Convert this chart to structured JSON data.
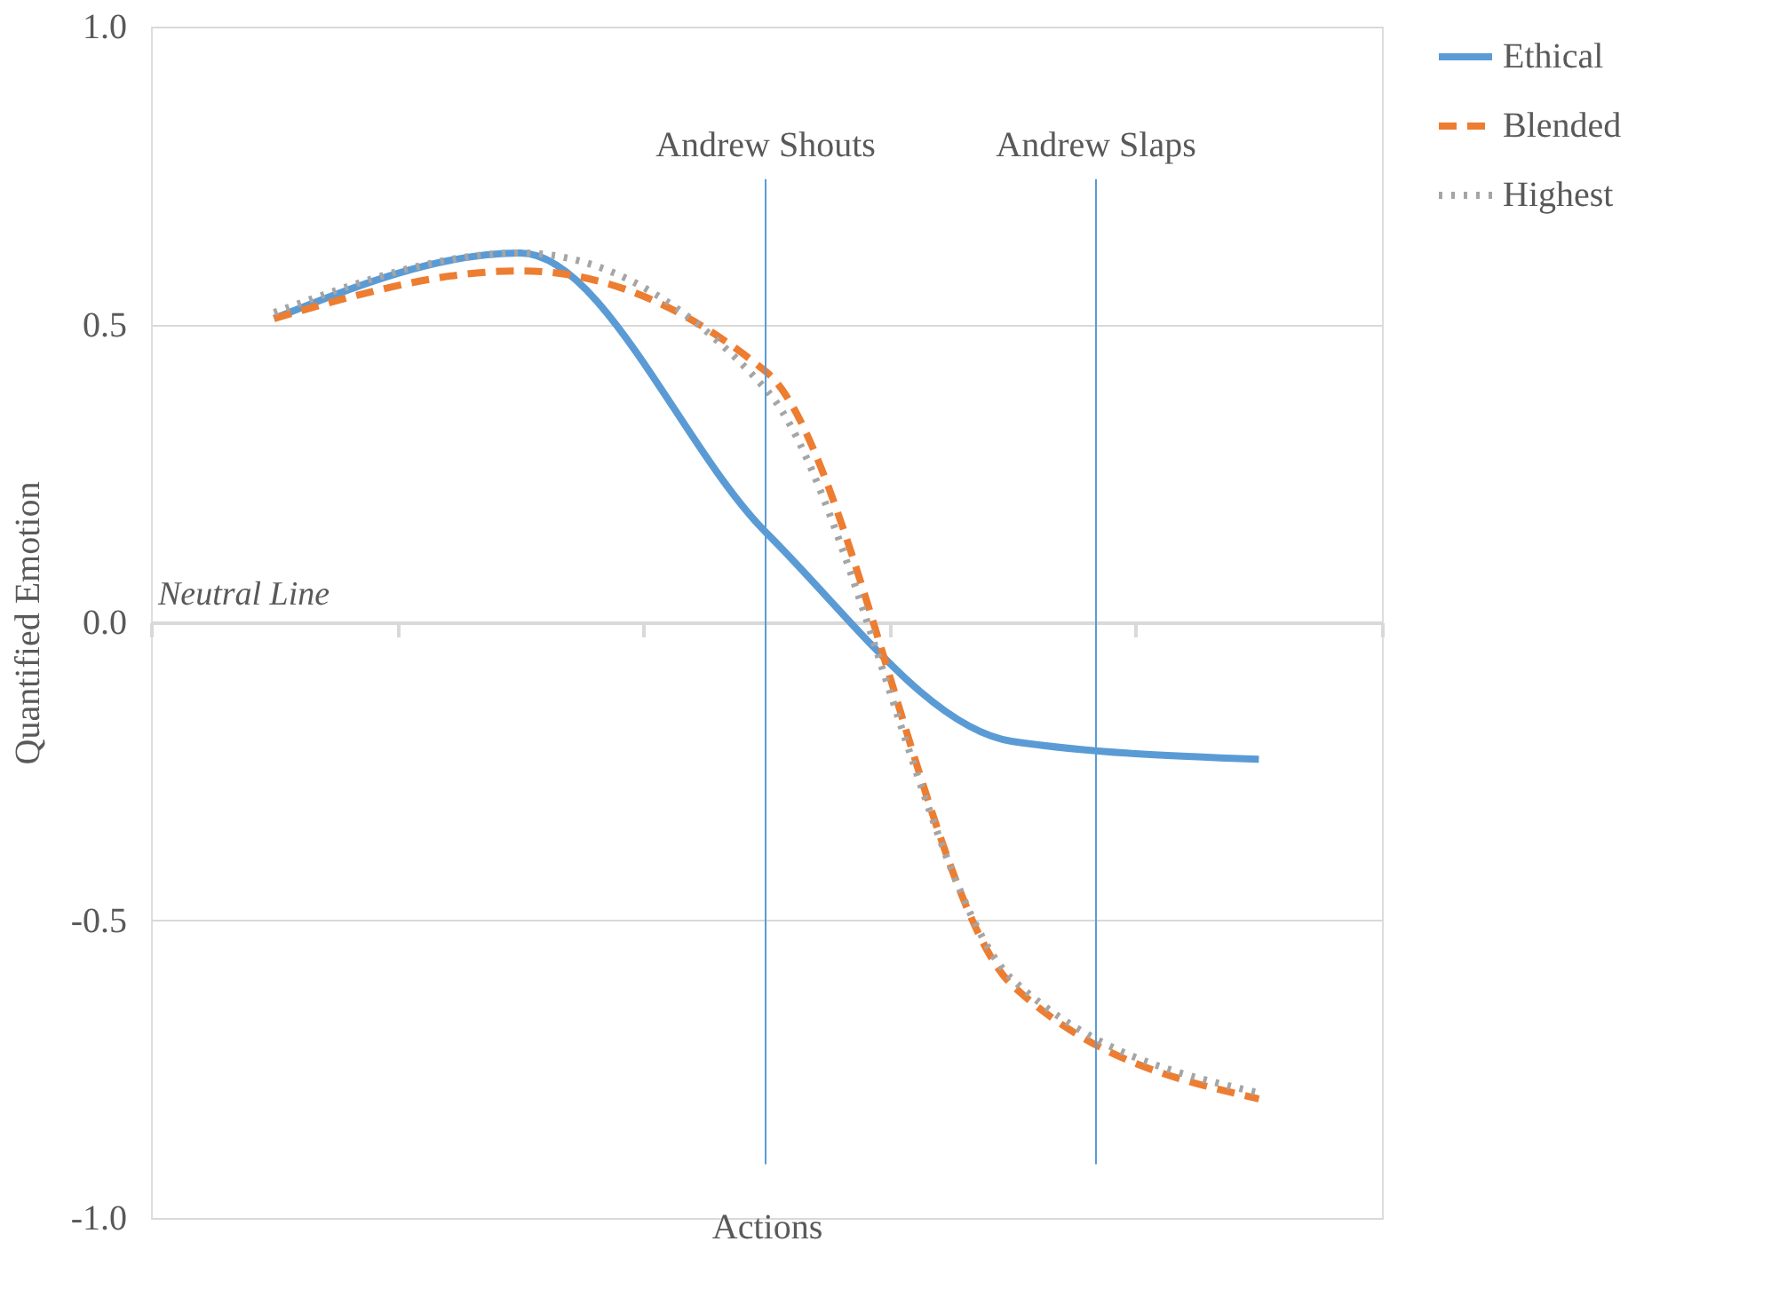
{
  "chart_data": {
    "type": "line",
    "xlabel": "Actions",
    "ylabel": "Quantified Emotion",
    "categories": [
      null,
      null,
      null,
      null,
      null
    ],
    "ylim": [
      -1,
      1
    ],
    "yticks": [
      {
        "value": -1,
        "label": "-1.0"
      },
      {
        "value": -0.5,
        "label": "-0.5"
      },
      {
        "value": 0,
        "label": "0.0"
      },
      {
        "value": 0.5,
        "label": "0.5"
      },
      {
        "value": 1,
        "label": "1.0"
      }
    ],
    "grid": "y",
    "legend": "right",
    "marker": "none",
    "series": [
      {
        "name": "Ethical",
        "color": "#5b9bd5",
        "line_style": "solid",
        "values": [
          0.51,
          0.62,
          0.15,
          -0.2,
          -0.23
        ]
      },
      {
        "name": "Blended",
        "color": "#ed7d31",
        "line_style": "dashed",
        "values": [
          0.51,
          0.59,
          0.42,
          -0.61,
          -0.8
        ]
      },
      {
        "name": "Highest",
        "color": "#a5a5a5",
        "line_style": "dotted",
        "values": [
          0.52,
          0.62,
          0.39,
          -0.6,
          -0.79
        ]
      }
    ],
    "ref_lines": [
      {
        "axis": "x",
        "label": "Andrew Shouts",
        "color": "#5b9bd5"
      },
      {
        "axis": "x",
        "label": "Andrew Slaps",
        "color": "#5b9bd5"
      }
    ],
    "annotations": [
      "Neutral Line"
    ]
  }
}
